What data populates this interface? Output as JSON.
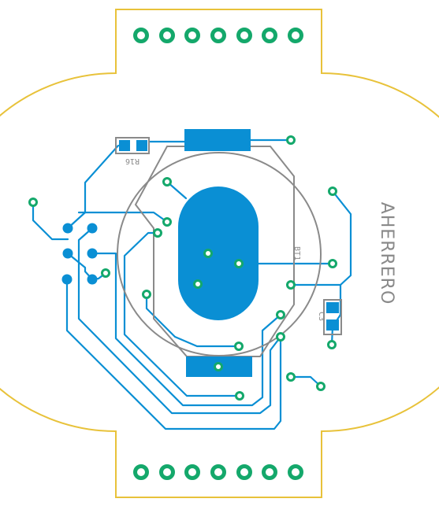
{
  "board": {
    "brand": "AHERRERO",
    "refs": {
      "r16": "R16",
      "bt1": "BT1",
      "c3": "C3"
    }
  },
  "colors": {
    "outline": "#e8c23a",
    "copper": "#0a8fd4",
    "silkscreen": "#8a8a8a",
    "pad_ring": "#14a86b",
    "pad_hole": "#ffffff",
    "background": "#ffffff"
  }
}
